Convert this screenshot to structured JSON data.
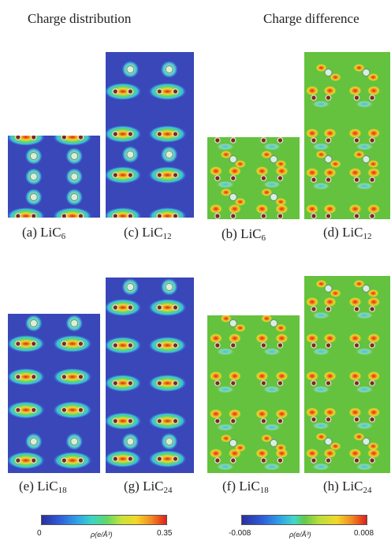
{
  "headings": {
    "left": "Charge distribution",
    "right": "Charge difference"
  },
  "panels": [
    {
      "id": "a",
      "prefix": "(a) LiC",
      "subscript": "6",
      "kind": "distribution"
    },
    {
      "id": "c",
      "prefix": "(c) LiC",
      "subscript": "12",
      "kind": "distribution"
    },
    {
      "id": "b",
      "prefix": "(b) LiC",
      "subscript": "6",
      "kind": "difference"
    },
    {
      "id": "d",
      "prefix": "(d) LiC",
      "subscript": "12",
      "kind": "difference"
    },
    {
      "id": "e",
      "prefix": "(e) LiC",
      "subscript": "18",
      "kind": "distribution"
    },
    {
      "id": "g",
      "prefix": "(g) LiC",
      "subscript": "24",
      "kind": "distribution"
    },
    {
      "id": "f",
      "prefix": "(f) LiC",
      "subscript": "18",
      "kind": "difference"
    },
    {
      "id": "h",
      "prefix": "(h) LiC",
      "subscript": "24",
      "kind": "difference"
    }
  ],
  "colorbars": {
    "distribution": {
      "min": "0",
      "max": "0.35",
      "unit": "ρ(e/Å³)"
    },
    "difference": {
      "min": "-0.008",
      "max": "0.008",
      "unit": "ρ(e/Å³)"
    }
  },
  "colors": {
    "dist_background": "#3a47b8",
    "diff_background": "#64c23e",
    "carbon_atom": "#7a2a22",
    "lithium_atom": "#d8efe0"
  }
}
